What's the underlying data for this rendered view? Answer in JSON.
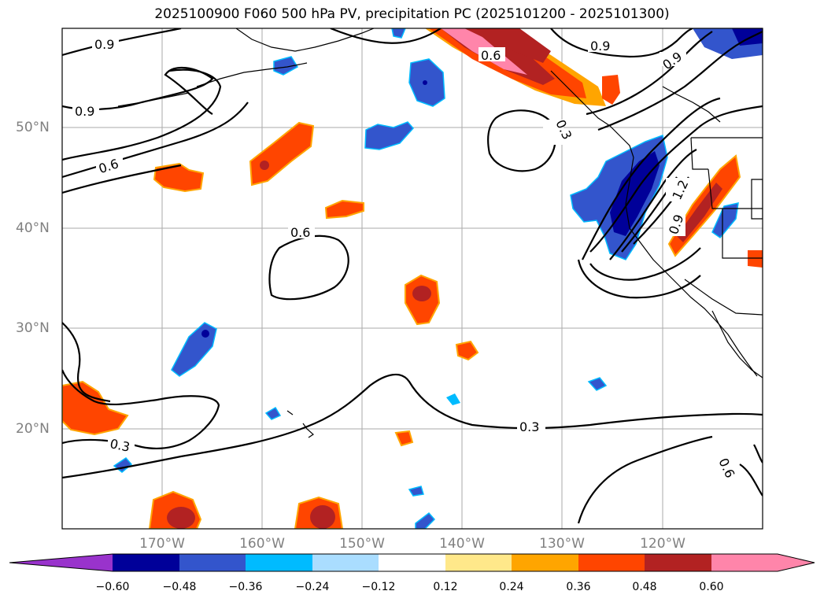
{
  "title": "2025100900 F060 500 hPa PV, precipitation PC (2025101200 - 2025101300)",
  "map": {
    "lat_labels": [
      "50°N",
      "40°N",
      "30°N",
      "20°N"
    ],
    "lon_labels": [
      "170°W",
      "160°W",
      "150°W",
      "140°W",
      "130°W",
      "120°W"
    ],
    "contour_labels": [
      "0.9",
      "0.9",
      "0.9",
      "0.6",
      "0.9",
      "0.6",
      "0.6",
      "0.3",
      "1.2",
      "0.9",
      "0.3",
      "0.3",
      "0.6"
    ]
  },
  "colorbar": {
    "colors": [
      "#9933cc",
      "#000099",
      "#3355cc",
      "#00bbff",
      "#aaddff",
      "#ffffff",
      "#ffe88a",
      "#ffa500",
      "#ff4500",
      "#b22222",
      "#ff85aa",
      "#ff85aa"
    ],
    "tick_labels": [
      "−0.60",
      "−0.48",
      "−0.36",
      "−0.24",
      "−0.12",
      "0.12",
      "0.24",
      "0.36",
      "0.48",
      "0.60"
    ]
  }
}
